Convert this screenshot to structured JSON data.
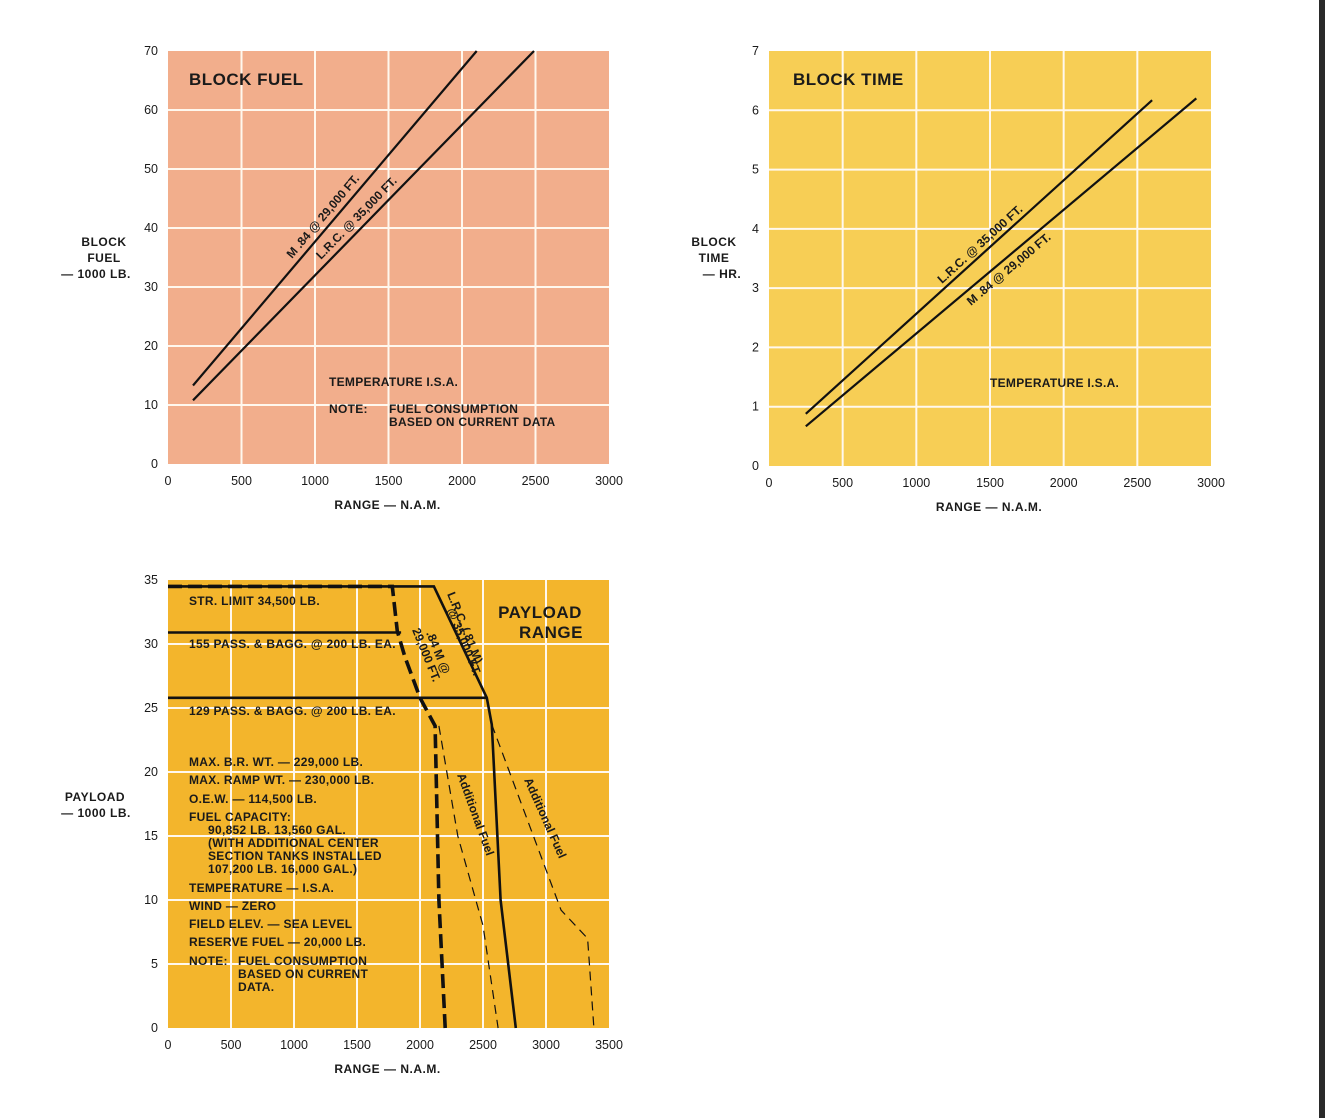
{
  "charts": {
    "block_fuel": {
      "title": "BLOCK FUEL",
      "ylabel": [
        "BLOCK",
        "FUEL",
        "— 1000 LB."
      ],
      "xlabel": "RANGE — N.A.M.",
      "notes": [
        "TEMPERATURE  I.S.A.",
        "NOTE:",
        "FUEL CONSUMPTION",
        "BASED ON CURRENT DATA"
      ]
    },
    "block_time": {
      "title": "BLOCK TIME",
      "ylabel": [
        "BLOCK",
        "TIME",
        "— HR."
      ],
      "xlabel": "RANGE — N.A.M.",
      "notes": [
        "TEMPERATURE  I.S.A."
      ]
    },
    "payload_range": {
      "title": [
        "PAYLOAD",
        "RANGE"
      ],
      "ylabel": [
        "PAYLOAD",
        "— 1000 LB."
      ],
      "xlabel": "RANGE — N.A.M.",
      "limit_labels": [
        "STR. LIMIT  34,500 LB.",
        "155 PASS. & BAGG. @ 200 LB. EA.",
        "129 PASS. & BAGG. @ 200 LB. EA."
      ],
      "notes": [
        "MAX. B.R. WT. — 229,000 LB.",
        "MAX. RAMP WT. — 230,000 LB.",
        "O.E.W. — 114,500 LB.",
        "FUEL CAPACITY:",
        "90,852 LB. 13,560 GAL.",
        "(WITH ADDITIONAL CENTER",
        "SECTION TANKS INSTALLED",
        "107,200 LB. 16,000 GAL.)",
        "TEMPERATURE — I.S.A.",
        "WIND — ZERO",
        "FIELD ELEV. — SEA LEVEL",
        "RESERVE FUEL — 20,000 LB.",
        "NOTE:",
        "FUEL CONSUMPTION",
        "BASED ON CURRENT",
        "DATA."
      ]
    }
  },
  "chart_data": [
    {
      "type": "line",
      "title": "BLOCK FUEL",
      "xlabel": "RANGE — N.A.M.",
      "ylabel": "BLOCK FUEL — 1000 LB.",
      "xlim": [
        0,
        3000
      ],
      "ylim": [
        0,
        70
      ],
      "xticks": [
        0,
        500,
        1000,
        1500,
        2000,
        2500,
        3000
      ],
      "yticks": [
        0,
        10,
        20,
        30,
        40,
        50,
        60,
        70
      ],
      "grid": true,
      "background": "#f2ae8c",
      "series": [
        {
          "name": "M .84 @ 29,000 FT.",
          "x": [
            170,
            2100
          ],
          "y": [
            13.3,
            70
          ]
        },
        {
          "name": "L.R.C. @ 35,000 FT.",
          "x": [
            170,
            2490
          ],
          "y": [
            10.8,
            70
          ]
        }
      ]
    },
    {
      "type": "line",
      "title": "BLOCK TIME",
      "xlabel": "RANGE — N.A.M.",
      "ylabel": "BLOCK TIME — HR.",
      "xlim": [
        0,
        3000
      ],
      "ylim": [
        0,
        7
      ],
      "xticks": [
        0,
        500,
        1000,
        1500,
        2000,
        2500,
        3000
      ],
      "yticks": [
        0,
        1,
        2,
        3,
        4,
        5,
        6,
        7
      ],
      "grid": true,
      "background": "#f7ce55",
      "series": [
        {
          "name": "L.R.C. @ 35,000 FT.",
          "x": [
            250,
            2600
          ],
          "y": [
            0.88,
            6.17
          ]
        },
        {
          "name": "M .84 @ 29,000 FT.",
          "x": [
            250,
            2900
          ],
          "y": [
            0.67,
            6.2
          ]
        }
      ]
    },
    {
      "type": "line",
      "title": "PAYLOAD RANGE",
      "xlabel": "RANGE — N.A.M.",
      "ylabel": "PAYLOAD — 1000 LB.",
      "xlim": [
        0,
        3500
      ],
      "ylim": [
        0,
        35
      ],
      "xticks": [
        0,
        500,
        1000,
        1500,
        2000,
        2500,
        3000,
        3500
      ],
      "yticks": [
        0,
        5,
        10,
        15,
        20,
        25,
        30,
        35
      ],
      "grid": true,
      "background": "#f3b52c",
      "series": [
        {
          "name": "L.R.C. (.81 M) @ 35,000 FT.",
          "style": "solid",
          "x": [
            0,
            2110,
            2530,
            2570,
            2640,
            2760
          ],
          "y": [
            34.5,
            34.5,
            25.8,
            23.7,
            10.0,
            0
          ]
        },
        {
          "name": ".84 M @ 29,000 FT.",
          "style": "dashed-thick",
          "x": [
            0,
            1780,
            1820,
            1880,
            2000,
            2120,
            2150,
            2200
          ],
          "y": [
            34.5,
            34.5,
            31.0,
            29.0,
            25.8,
            23.6,
            10.0,
            0
          ]
        },
        {
          "name": "Additional Fuel",
          "style": "dashed-thin",
          "x": [
            2150,
            2300,
            2500,
            2620
          ],
          "y": [
            23.6,
            15.0,
            8.0,
            0
          ]
        },
        {
          "name": "Additional Fuel",
          "style": "dashed-thin",
          "x": [
            2570,
            3120,
            3330,
            3380
          ],
          "y": [
            23.7,
            9.2,
            7.0,
            0
          ]
        },
        {
          "name": "155 PASS. & BAGG. @ 200 LB. EA.",
          "style": "solid",
          "x": [
            0,
            1850
          ],
          "y": [
            30.9,
            30.9
          ]
        },
        {
          "name": "129 PASS. & BAGG. @ 200 LB. EA.",
          "style": "solid",
          "x": [
            0,
            2530
          ],
          "y": [
            25.8,
            25.8
          ]
        }
      ]
    }
  ]
}
